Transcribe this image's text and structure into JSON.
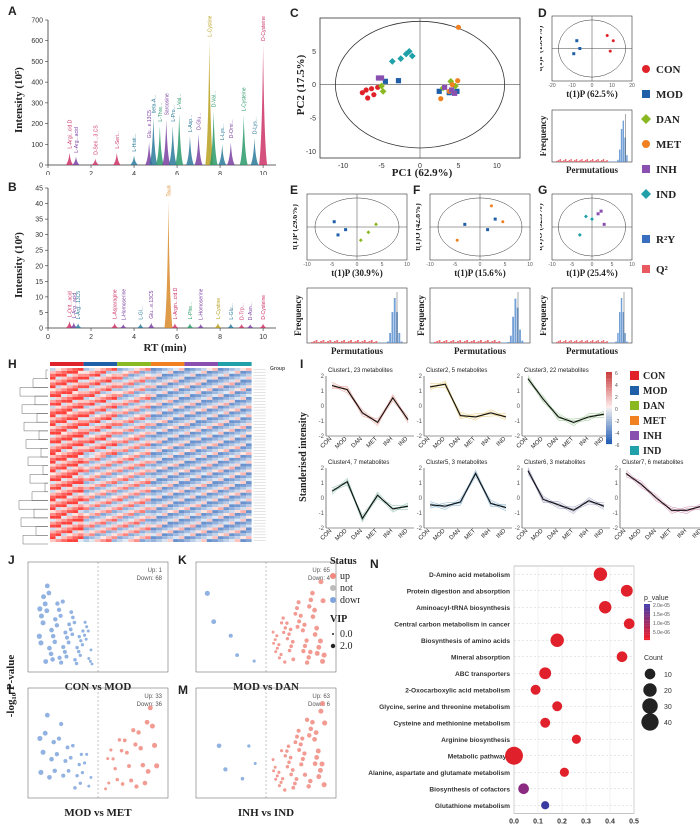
{
  "panels": {
    "A": "A",
    "B": "B",
    "C": "C",
    "D": "D",
    "E": "E",
    "F": "F",
    "G": "G",
    "H": "H",
    "I": "I",
    "J": "J",
    "K": "K",
    "L": "L",
    "M": "M",
    "N": "N"
  },
  "panelA": {
    "ylabel": "Intensity (10⁵)",
    "yticks": [
      "0",
      "100",
      "200",
      "300",
      "400",
      "500",
      "600",
      "700"
    ],
    "peaks": [
      {
        "rt": 1.0,
        "h": 60,
        "label": "L-Argi...cid.D",
        "color": "#cc3366"
      },
      {
        "rt": 1.3,
        "h": 40,
        "label": "L-Arg...acid",
        "color": "#7a3fa0"
      },
      {
        "rt": 2.2,
        "h": 30,
        "label": "D-Seri...3.CS",
        "color": "#cc3366"
      },
      {
        "rt": 3.2,
        "h": 60,
        "label": "L-Seri...",
        "color": "#cc3366"
      },
      {
        "rt": 4.0,
        "h": 45,
        "label": "L-Histi...",
        "color": "#2a7a9a"
      },
      {
        "rt": 4.7,
        "h": 110,
        "label": "Glu...e.13C5",
        "color": "#7a3fa0"
      },
      {
        "rt": 4.9,
        "h": 230,
        "label": "beta-A...",
        "color": "#2a7a9a"
      },
      {
        "rt": 5.2,
        "h": 190,
        "label": "L-Thre...",
        "color": "#2a9a6a"
      },
      {
        "rt": 5.5,
        "h": 220,
        "label": "Sarcosine",
        "color": "#7a3fa0"
      },
      {
        "rt": 5.8,
        "h": 190,
        "label": "L-Pro...",
        "color": "#2a7a9a"
      },
      {
        "rt": 6.1,
        "h": 250,
        "label": "L-Val...",
        "color": "#2a9a6a"
      },
      {
        "rt": 6.6,
        "h": 140,
        "label": "L-Asp...",
        "color": "#2a7a9a"
      },
      {
        "rt": 7.0,
        "h": 150,
        "label": "D-Glu...",
        "color": "#7a3fa0"
      },
      {
        "rt": 7.5,
        "h": 600,
        "label": "L-Cystine",
        "color": "#b8a020"
      },
      {
        "rt": 7.7,
        "h": 260,
        "label": "D-Val...",
        "color": "#2a9a6a"
      },
      {
        "rt": 8.1,
        "h": 100,
        "label": "L-Lys...",
        "color": "#2a7a9a"
      },
      {
        "rt": 8.5,
        "h": 110,
        "label": "D-Orni...",
        "color": "#7a3fa0"
      },
      {
        "rt": 9.1,
        "h": 240,
        "label": "L-Cysteine",
        "color": "#2a9a6a"
      },
      {
        "rt": 9.6,
        "h": 130,
        "label": "D-Lys...",
        "color": "#2a7a9a"
      },
      {
        "rt": 10.0,
        "h": 580,
        "label": "D-Cysteine",
        "color": "#cc3366"
      }
    ]
  },
  "panelB": {
    "ylabel": "Intensity (10⁶)",
    "xlabel": "RT (min)",
    "yticks": [
      "0",
      "5",
      "10",
      "15",
      "20",
      "25",
      "30",
      "35",
      "40",
      "45"
    ],
    "xticks": [
      "0",
      "2",
      "4",
      "6",
      "8",
      "10"
    ],
    "peaks": [
      {
        "rt": 1.0,
        "h": 2.2,
        "label": "L-Orit...acid",
        "color": "#cc3366"
      },
      {
        "rt": 1.2,
        "h": 1.8,
        "label": "L-Arg...acid",
        "color": "#7a3fa0"
      },
      {
        "rt": 1.4,
        "h": 1.5,
        "label": "L-Arg...13C5",
        "color": "#2a7a9a"
      },
      {
        "rt": 3.1,
        "h": 1.6,
        "label": "L-Asparagine",
        "color": "#cc3366"
      },
      {
        "rt": 3.5,
        "h": 1.2,
        "label": "L-Homoserine",
        "color": "#7a3fa0"
      },
      {
        "rt": 4.3,
        "h": 1.4,
        "label": "L-Gl...",
        "color": "#2a7a9a"
      },
      {
        "rt": 4.8,
        "h": 1.7,
        "label": "Glu...e.13C5",
        "color": "#7a3fa0"
      },
      {
        "rt": 5.6,
        "h": 41,
        "label": "Taurine",
        "color": "#d88a2a"
      },
      {
        "rt": 5.9,
        "h": 1.5,
        "label": "L-Argin...cid.D",
        "color": "#cc3366"
      },
      {
        "rt": 6.6,
        "h": 1.5,
        "label": "L-Phe...",
        "color": "#2a9a6a"
      },
      {
        "rt": 7.1,
        "h": 1.3,
        "label": "L-Homoserine",
        "color": "#7a3fa0"
      },
      {
        "rt": 7.9,
        "h": 1.6,
        "label": "L-Cystine",
        "color": "#b8a020"
      },
      {
        "rt": 8.5,
        "h": 1.4,
        "label": "L-Glu...",
        "color": "#2a7a9a"
      },
      {
        "rt": 9.0,
        "h": 1.3,
        "label": "D-Trp...",
        "color": "#cc3366"
      },
      {
        "rt": 9.4,
        "h": 1.2,
        "label": "D-Asn...",
        "color": "#7a3fa0"
      },
      {
        "rt": 10.0,
        "h": 1.4,
        "label": "D-Cysteine",
        "color": "#cc3366"
      }
    ]
  },
  "panelC": {
    "xlabel": "PC1 (62.9%)",
    "ylabel": "PC2 (17.5%)",
    "xticks": [
      "-10",
      "-5",
      "0",
      "5",
      "10"
    ],
    "yticks": [
      "-10",
      "-5",
      "0",
      "5"
    ],
    "points": [
      {
        "g": "CON",
        "x": -7.5,
        "y": -1.2
      },
      {
        "g": "CON",
        "x": -6.8,
        "y": -2.0
      },
      {
        "g": "CON",
        "x": -6.0,
        "y": -1.5
      },
      {
        "g": "CON",
        "x": -5.5,
        "y": -0.4
      },
      {
        "g": "CON",
        "x": -6.3,
        "y": -0.6
      },
      {
        "g": "CON",
        "x": -7.0,
        "y": -0.8
      },
      {
        "g": "MOD",
        "x": -4.5,
        "y": 0.5
      },
      {
        "g": "MOD",
        "x": -2.8,
        "y": 0.6
      },
      {
        "g": "MOD",
        "x": 2.5,
        "y": -1.0
      },
      {
        "g": "MOD",
        "x": 4.8,
        "y": -1.0
      },
      {
        "g": "MOD",
        "x": 3.8,
        "y": -1.2
      },
      {
        "g": "DAN",
        "x": -5.0,
        "y": -0.2
      },
      {
        "g": "DAN",
        "x": -4.8,
        "y": -1.0
      },
      {
        "g": "DAN",
        "x": 3.0,
        "y": -0.5
      },
      {
        "g": "DAN",
        "x": 4.0,
        "y": 0.5
      },
      {
        "g": "DAN",
        "x": 4.6,
        "y": -0.2
      },
      {
        "g": "MET",
        "x": 5.0,
        "y": 8.6
      },
      {
        "g": "MET",
        "x": 3.8,
        "y": -1.0
      },
      {
        "g": "MET",
        "x": 4.2,
        "y": 0.0
      },
      {
        "g": "MET",
        "x": 4.9,
        "y": 0.6
      },
      {
        "g": "MET",
        "x": 2.7,
        "y": -2.1
      },
      {
        "g": "INH",
        "x": -5.4,
        "y": 1.0
      },
      {
        "g": "INH",
        "x": -5.0,
        "y": 1.0
      },
      {
        "g": "INH",
        "x": 4.1,
        "y": -0.8
      },
      {
        "g": "INH",
        "x": 3.2,
        "y": -0.4
      },
      {
        "g": "INH",
        "x": 4.5,
        "y": -1.3
      },
      {
        "g": "IND",
        "x": -3.6,
        "y": 3.5
      },
      {
        "g": "IND",
        "x": -1.8,
        "y": 4.6
      },
      {
        "g": "IND",
        "x": -1.4,
        "y": 5.0
      },
      {
        "g": "IND",
        "x": -1.0,
        "y": 4.3
      },
      {
        "g": "IND",
        "x": -2.5,
        "y": 3.9
      }
    ]
  },
  "legend": [
    {
      "name": "CON",
      "color": "#e0222a",
      "shape": "circle"
    },
    {
      "name": "MOD",
      "color": "#1e5fa8",
      "shape": "square"
    },
    {
      "name": "DAN",
      "color": "#8ab820",
      "shape": "diamond"
    },
    {
      "name": "MET",
      "color": "#f08020",
      "shape": "circle"
    },
    {
      "name": "INH",
      "color": "#8a50b0",
      "shape": "square"
    },
    {
      "name": "IND",
      "color": "#20a0a8",
      "shape": "diamond"
    },
    {
      "name": "R²Y",
      "color": "#3a6fc0",
      "shape": "square"
    },
    {
      "name": "Q²",
      "color": "#e85a60",
      "shape": "square"
    }
  ],
  "panelD": {
    "xlabel": "t(1)P (62.5%)",
    "ylabel": "t(1)P (15.4%)",
    "xticks": [
      "-20",
      "-10",
      "0",
      "10",
      "20"
    ]
  },
  "panelE": {
    "xlabel": "t(1)P (30.9%)",
    "ylabel": "t(1)P (29.6%)",
    "xticks": [
      "-10",
      "-5",
      "0",
      "5",
      "10"
    ]
  },
  "panelF": {
    "xlabel": "t(1)P (15.6%)",
    "ylabel": "t(1)O (42.8%)",
    "xticks": [
      "-10",
      "-5",
      "0",
      "5",
      "10"
    ]
  },
  "panelG": {
    "xlabel": "t(1)P (25.4%)",
    "ylabel": "t(1)O (52.3%)",
    "xticks": [
      "-10",
      "-5",
      "0",
      "5",
      "10"
    ]
  },
  "perm": {
    "ylabel": "Frequency",
    "xlabel": "Permutatious"
  },
  "panelH": {
    "legend_title": "Group",
    "group_colors": [
      "#e0222a",
      "#1e5fa8",
      "#8ab820",
      "#f08020",
      "#8a50b0",
      "#20a0a8"
    ]
  },
  "panelI": {
    "ylabel": "Standerised intensity",
    "groups": [
      "CON",
      "MOD",
      "DAN",
      "MET",
      "INH",
      "IND"
    ],
    "yticks": [
      "2",
      "1",
      "0",
      "-1",
      "-2"
    ],
    "clusters": [
      {
        "title": "Cluster1, 23 metabolites",
        "color": "#c43a2a",
        "values": [
          1.5,
          1.2,
          -0.5,
          -1.2,
          0.6,
          -1.0
        ]
      },
      {
        "title": "Cluster2, 5 metabolites",
        "color": "#d0a010",
        "values": [
          1.4,
          1.6,
          -0.7,
          -0.8,
          -0.5,
          -0.8
        ]
      },
      {
        "title": "Cluster3, 22 metabolites",
        "color": "#3a8a2a",
        "values": [
          2.0,
          0.5,
          -0.8,
          -1.2,
          -0.8,
          -0.6
        ]
      },
      {
        "title": "Cluster4, 7 metabolites",
        "color": "#1a7a5a",
        "values": [
          0.5,
          1.2,
          -1.5,
          0.2,
          -0.8,
          -0.6
        ]
      },
      {
        "title": "Cluster5, 3 metabolites",
        "color": "#1a6aa0",
        "values": [
          -0.5,
          -0.6,
          -0.3,
          1.8,
          -0.4,
          -0.7
        ]
      },
      {
        "title": "Cluster6, 3 metabolites",
        "color": "#3a3a80",
        "values": [
          2.0,
          -0.1,
          -0.5,
          -0.9,
          -0.2,
          -0.6
        ]
      },
      {
        "title": "Cluster7, 6 metabolites",
        "color": "#a02060",
        "values": [
          1.8,
          1.0,
          0.0,
          -0.9,
          -0.9,
          -0.6
        ]
      }
    ],
    "heat_legend": {
      "ticks": [
        "6",
        "4",
        "2",
        "0",
        "-2",
        "-4",
        "-6"
      ],
      "groups": [
        "CON",
        "MOD",
        "DAN",
        "MET",
        "INH",
        "IND"
      ]
    }
  },
  "volcano": {
    "ylabel": "-log₁₀ P-value",
    "status_title": "Status",
    "status": [
      "up",
      "not",
      "down"
    ],
    "vip_title": "VIP",
    "vip": [
      "0.0",
      "2.0"
    ],
    "plots": [
      {
        "id": "J",
        "title": "CON vs MOD",
        "up": "Up: 1",
        "down": "Down: 68"
      },
      {
        "id": "K",
        "title": "MOD vs DAN",
        "up": "Up: 65",
        "down": "Down: 4"
      },
      {
        "id": "L",
        "title": "MOD vs MET",
        "up": "Up: 33",
        "down": "Down: 36"
      },
      {
        "id": "M",
        "title": "INH vs IND",
        "up": "Up: 63",
        "down": "Down: 6"
      }
    ]
  },
  "chart_data": {
    "type": "scatter",
    "title": "",
    "xlabel": "",
    "xlim": [
      0,
      0.5
    ],
    "xticks": [
      "0.0",
      "0.1",
      "0.2",
      "0.3",
      "0.4",
      "0.5"
    ],
    "categories": [
      "D-Amino acid metabolism",
      "Protein digestion and absorption",
      "Aminoacyl-tRNA biosynthesis",
      "Central carbon metabolism in cancer",
      "Biosynthesis of amino acids",
      "Mineral absorption",
      "ABC transporters",
      "2-Oxocarboxylic acid metabolism",
      "Glycine, serine and threonine metabolism",
      "Cysteine and methionine metabolism",
      "Arginine biosynthesis",
      "Metabolic pathways",
      "Alanine, aspartate and glutamate metabolism",
      "Biosynthesis of cofactors",
      "Glutathione metabolism"
    ],
    "x": [
      0.36,
      0.47,
      0.38,
      0.48,
      0.18,
      0.45,
      0.13,
      0.09,
      0.18,
      0.13,
      0.26,
      0.0,
      0.21,
      0.04,
      0.13
    ],
    "count": [
      20,
      14,
      16,
      10,
      20,
      10,
      14,
      8,
      8,
      8,
      6,
      44,
      6,
      10,
      4
    ],
    "p_value": [
      1e-06,
      1e-06,
      1e-06,
      1e-06,
      1e-06,
      1e-06,
      1e-06,
      1e-06,
      1e-06,
      1e-06,
      1e-06,
      1e-06,
      1e-06,
      1.2e-05,
      2e-05
    ],
    "legend_p_title": "p_value",
    "legend_p": [
      "2.0e-05",
      "1.5e-05",
      "1.0e-05",
      "5.0e-06"
    ],
    "legend_count_title": "Count",
    "legend_count": [
      10,
      20,
      30,
      40
    ]
  }
}
